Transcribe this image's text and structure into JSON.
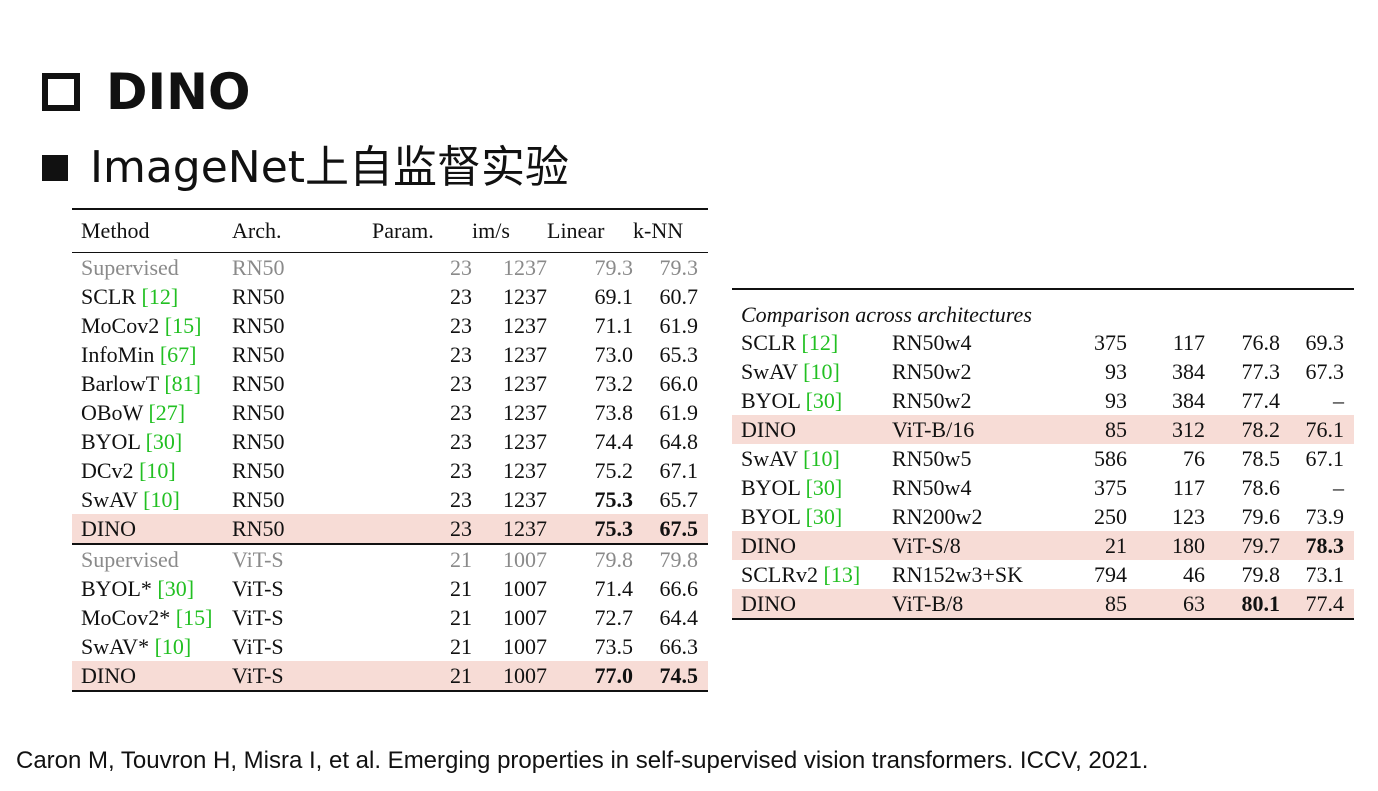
{
  "slide": {
    "title": "DINO",
    "subtitle": "ImageNet上自监督实验",
    "citation": "Caron M, Touvron H, Misra I, et al. Emerging properties in self-supervised vision transformers. ICCV, 2021."
  },
  "left_table": {
    "headers": [
      "Method",
      "Arch.",
      "Param.",
      "im/s",
      "Linear",
      "k-NN"
    ],
    "group1": [
      {
        "method": "Supervised",
        "ref": "",
        "arch": "RN50",
        "param": "23",
        "ims": "1237",
        "linear": "79.3",
        "knn": "79.3"
      },
      {
        "method": "SCLR ",
        "ref": "[12]",
        "arch": "RN50",
        "param": "23",
        "ims": "1237",
        "linear": "69.1",
        "knn": "60.7"
      },
      {
        "method": "MoCov2 ",
        "ref": "[15]",
        "arch": "RN50",
        "param": "23",
        "ims": "1237",
        "linear": "71.1",
        "knn": "61.9"
      },
      {
        "method": "InfoMin ",
        "ref": "[67]",
        "arch": "RN50",
        "param": "23",
        "ims": "1237",
        "linear": "73.0",
        "knn": "65.3"
      },
      {
        "method": "BarlowT ",
        "ref": "[81]",
        "arch": "RN50",
        "param": "23",
        "ims": "1237",
        "linear": "73.2",
        "knn": "66.0"
      },
      {
        "method": "OBoW ",
        "ref": "[27]",
        "arch": "RN50",
        "param": "23",
        "ims": "1237",
        "linear": "73.8",
        "knn": "61.9"
      },
      {
        "method": "BYOL ",
        "ref": "[30]",
        "arch": "RN50",
        "param": "23",
        "ims": "1237",
        "linear": "74.4",
        "knn": "64.8"
      },
      {
        "method": "DCv2 ",
        "ref": "[10]",
        "arch": "RN50",
        "param": "23",
        "ims": "1237",
        "linear": "75.2",
        "knn": "67.1"
      },
      {
        "method": "SwAV ",
        "ref": "[10]",
        "arch": "RN50",
        "param": "23",
        "ims": "1237",
        "linear": "75.3",
        "knn": "65.7"
      },
      {
        "method": "DINO",
        "ref": "",
        "arch": "RN50",
        "param": "23",
        "ims": "1237",
        "linear": "75.3",
        "knn": "67.5"
      }
    ],
    "group2": [
      {
        "method": "Supervised",
        "ref": "",
        "arch": "ViT-S",
        "param": "21",
        "ims": "1007",
        "linear": "79.8",
        "knn": "79.8"
      },
      {
        "method": "BYOL* ",
        "ref": "[30]",
        "arch": "ViT-S",
        "param": "21",
        "ims": "1007",
        "linear": "71.4",
        "knn": "66.6"
      },
      {
        "method": "MoCov2* ",
        "ref": "[15]",
        "arch": "ViT-S",
        "param": "21",
        "ims": "1007",
        "linear": "72.7",
        "knn": "64.4"
      },
      {
        "method": "SwAV* ",
        "ref": "[10]",
        "arch": "ViT-S",
        "param": "21",
        "ims": "1007",
        "linear": "73.5",
        "knn": "66.3"
      },
      {
        "method": "DINO",
        "ref": "",
        "arch": "ViT-S",
        "param": "21",
        "ims": "1007",
        "linear": "77.0",
        "knn": "74.5"
      }
    ]
  },
  "right_table": {
    "caption": "Comparison across architectures",
    "rows": [
      {
        "method": "SCLR ",
        "ref": "[12]",
        "arch": "RN50w4",
        "param": "375",
        "ims": "117",
        "linear": "76.8",
        "knn": "69.3"
      },
      {
        "method": "SwAV ",
        "ref": "[10]",
        "arch": "RN50w2",
        "param": "93",
        "ims": "384",
        "linear": "77.3",
        "knn": "67.3"
      },
      {
        "method": "BYOL ",
        "ref": "[30]",
        "arch": "RN50w2",
        "param": "93",
        "ims": "384",
        "linear": "77.4",
        "knn": "–"
      },
      {
        "method": "DINO",
        "ref": "",
        "arch": "ViT-B/16",
        "param": "85",
        "ims": "312",
        "linear": "78.2",
        "knn": "76.1"
      },
      {
        "method": "SwAV ",
        "ref": "[10]",
        "arch": "RN50w5",
        "param": "586",
        "ims": "76",
        "linear": "78.5",
        "knn": "67.1"
      },
      {
        "method": "BYOL ",
        "ref": "[30]",
        "arch": "RN50w4",
        "param": "375",
        "ims": "117",
        "linear": "78.6",
        "knn": "–"
      },
      {
        "method": "BYOL ",
        "ref": "[30]",
        "arch": "RN200w2",
        "param": "250",
        "ims": "123",
        "linear": "79.6",
        "knn": "73.9"
      },
      {
        "method": "DINO",
        "ref": "",
        "arch": "ViT-S/8",
        "param": "21",
        "ims": "180",
        "linear": "79.7",
        "knn": "78.3"
      },
      {
        "method": "SCLRv2 ",
        "ref": "[13]",
        "arch": "RN152w3+SK",
        "param": "794",
        "ims": "46",
        "linear": "79.8",
        "knn": "73.1"
      },
      {
        "method": "DINO",
        "ref": "",
        "arch": "ViT-B/8",
        "param": "85",
        "ims": "63",
        "linear": "80.1",
        "knn": "77.4"
      }
    ]
  }
}
